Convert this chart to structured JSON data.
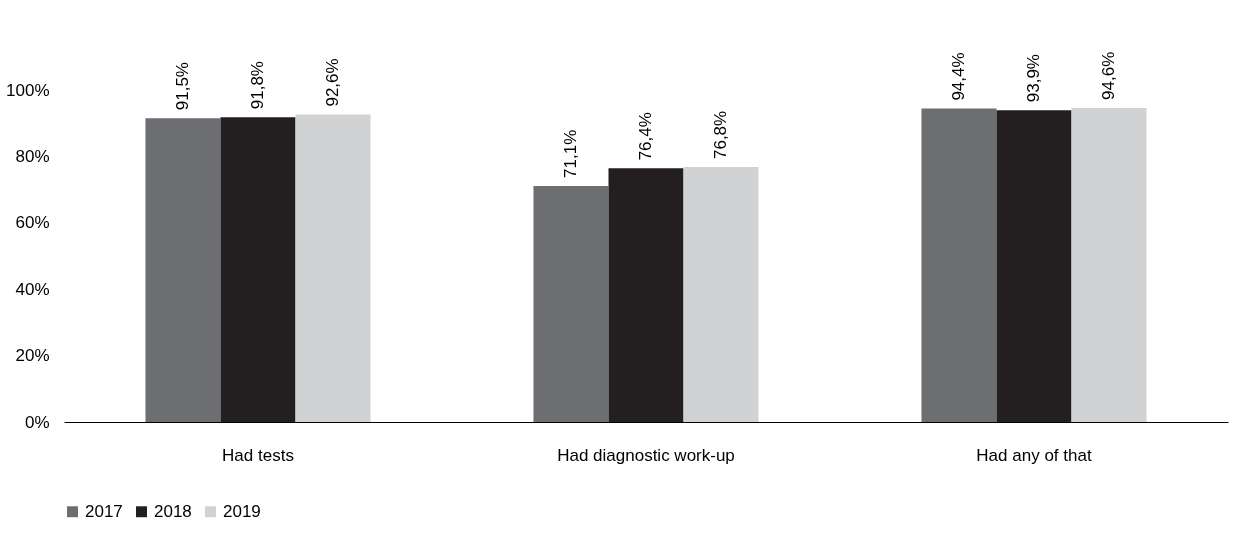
{
  "chart_data": {
    "type": "bar",
    "categories": [
      "Had tests",
      "Had diagnostic work-up",
      "Had any of that"
    ],
    "series": [
      {
        "name": "2017",
        "color": "#6d6e71",
        "values": [
          91.5,
          71.1,
          94.4
        ],
        "value_labels": [
          "91,5%",
          "71,1%",
          "94,4%"
        ]
      },
      {
        "name": "2018",
        "color": "#231f20",
        "values": [
          91.8,
          76.4,
          93.9
        ],
        "value_labels": [
          "91,8%",
          "76,4%",
          "93,9%"
        ]
      },
      {
        "name": "2019",
        "color": "#d1d2d4",
        "values": [
          92.6,
          76.8,
          94.6
        ],
        "value_labels": [
          "92,6%",
          "76,8%",
          "94,6%"
        ]
      }
    ],
    "ylim": [
      0,
      100
    ],
    "yticks": [
      {
        "value": 0,
        "label": "0%"
      },
      {
        "value": 20,
        "label": "20%"
      },
      {
        "value": 40,
        "label": "40%"
      },
      {
        "value": 60,
        "label": "60%"
      },
      {
        "value": 80,
        "label": "80%"
      },
      {
        "value": 100,
        "label": "100%"
      }
    ],
    "grid": false,
    "legend": "bottom"
  }
}
